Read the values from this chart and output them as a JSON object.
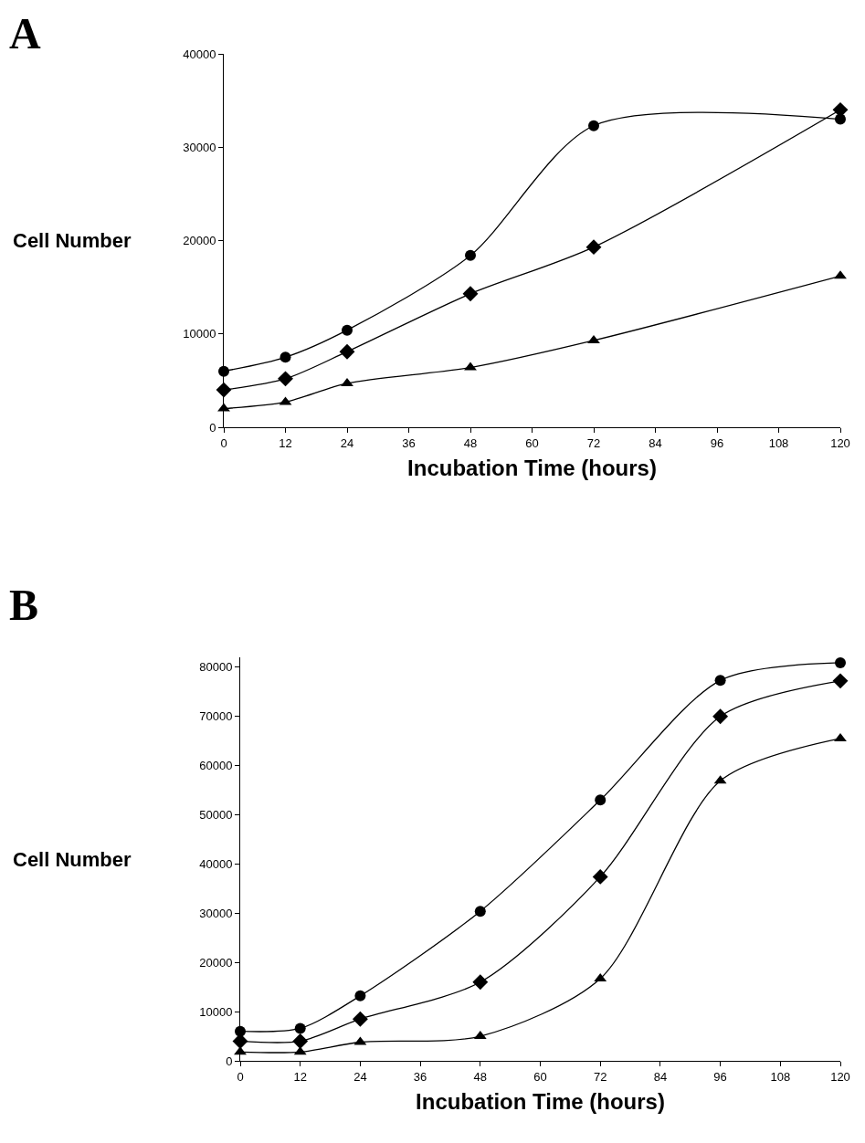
{
  "chart_data": [
    {
      "type": "line",
      "title": "A",
      "xlabel": "Incubation Time (hours)",
      "ylabel": "Cell Number",
      "x": [
        0,
        12,
        24,
        48,
        72,
        120
      ],
      "xlim": [
        0,
        120
      ],
      "xticks": [
        0,
        12,
        24,
        36,
        48,
        60,
        72,
        84,
        96,
        108,
        120
      ],
      "ylim": [
        0,
        40000
      ],
      "yticks": [
        0,
        10000,
        20000,
        30000,
        40000
      ],
      "grid": false,
      "line_style": "solid",
      "series": [
        {
          "color": "#000000",
          "marker": "circle",
          "values": [
            6000,
            7500,
            10400,
            18400,
            32300,
            33000
          ]
        },
        {
          "color": "#000000",
          "marker": "diamond",
          "values": [
            4000,
            5200,
            8100,
            14300,
            19300,
            34000
          ]
        },
        {
          "color": "#000000",
          "marker": "triangle",
          "values": [
            2000,
            2700,
            4700,
            6400,
            9300,
            16200
          ]
        }
      ]
    },
    {
      "type": "line",
      "title": "B",
      "xlabel": "Incubation Time (hours)",
      "ylabel": "Cell Number",
      "x": [
        0,
        12,
        24,
        48,
        72,
        96,
        120
      ],
      "xlim": [
        0,
        120
      ],
      "xticks": [
        0,
        12,
        24,
        36,
        48,
        60,
        72,
        84,
        96,
        108,
        120
      ],
      "ylim": [
        0,
        82000
      ],
      "yticks": [
        0,
        10000,
        20000,
        30000,
        40000,
        50000,
        60000,
        70000,
        80000
      ],
      "grid": false,
      "line_style": "solid",
      "series": [
        {
          "color": "#000000",
          "marker": "circle",
          "values": [
            6000,
            6600,
            13200,
            30400,
            53000,
            77300,
            80900
          ]
        },
        {
          "color": "#000000",
          "marker": "diamond",
          "values": [
            4000,
            4000,
            8500,
            16000,
            37400,
            70000,
            77200
          ]
        },
        {
          "color": "#000000",
          "marker": "triangle",
          "values": [
            1800,
            1800,
            3800,
            5000,
            16700,
            56900,
            65500
          ]
        }
      ]
    }
  ]
}
